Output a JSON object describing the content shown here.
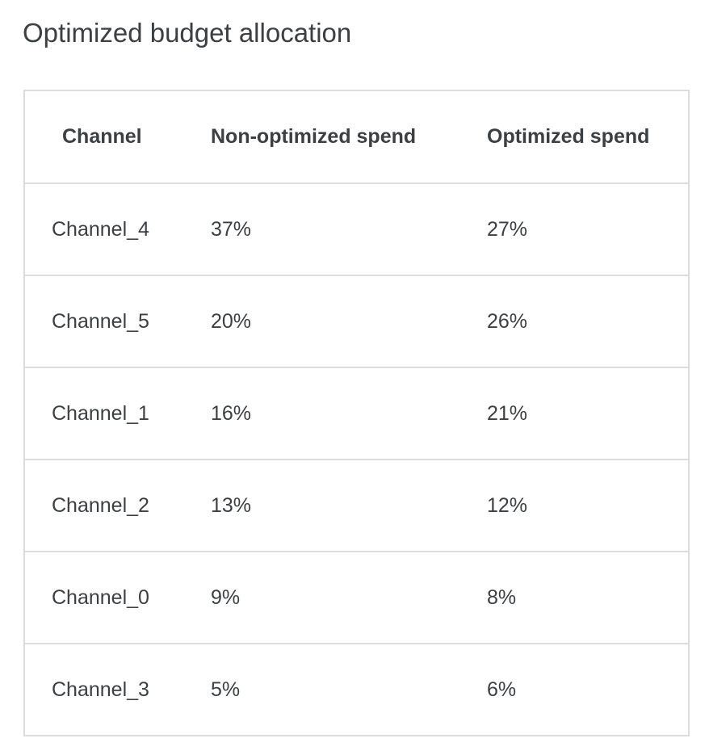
{
  "title": "Optimized budget allocation",
  "columns": [
    "Channel",
    "Non-optimized spend",
    "Optimized spend"
  ],
  "rows": [
    [
      "Channel_4",
      "37%",
      "27%"
    ],
    [
      "Channel_5",
      "20%",
      "26%"
    ],
    [
      "Channel_1",
      "16%",
      "21%"
    ],
    [
      "Channel_2",
      "13%",
      "12%"
    ],
    [
      "Channel_0",
      "9%",
      "8%"
    ],
    [
      "Channel_3",
      "5%",
      "6%"
    ]
  ]
}
